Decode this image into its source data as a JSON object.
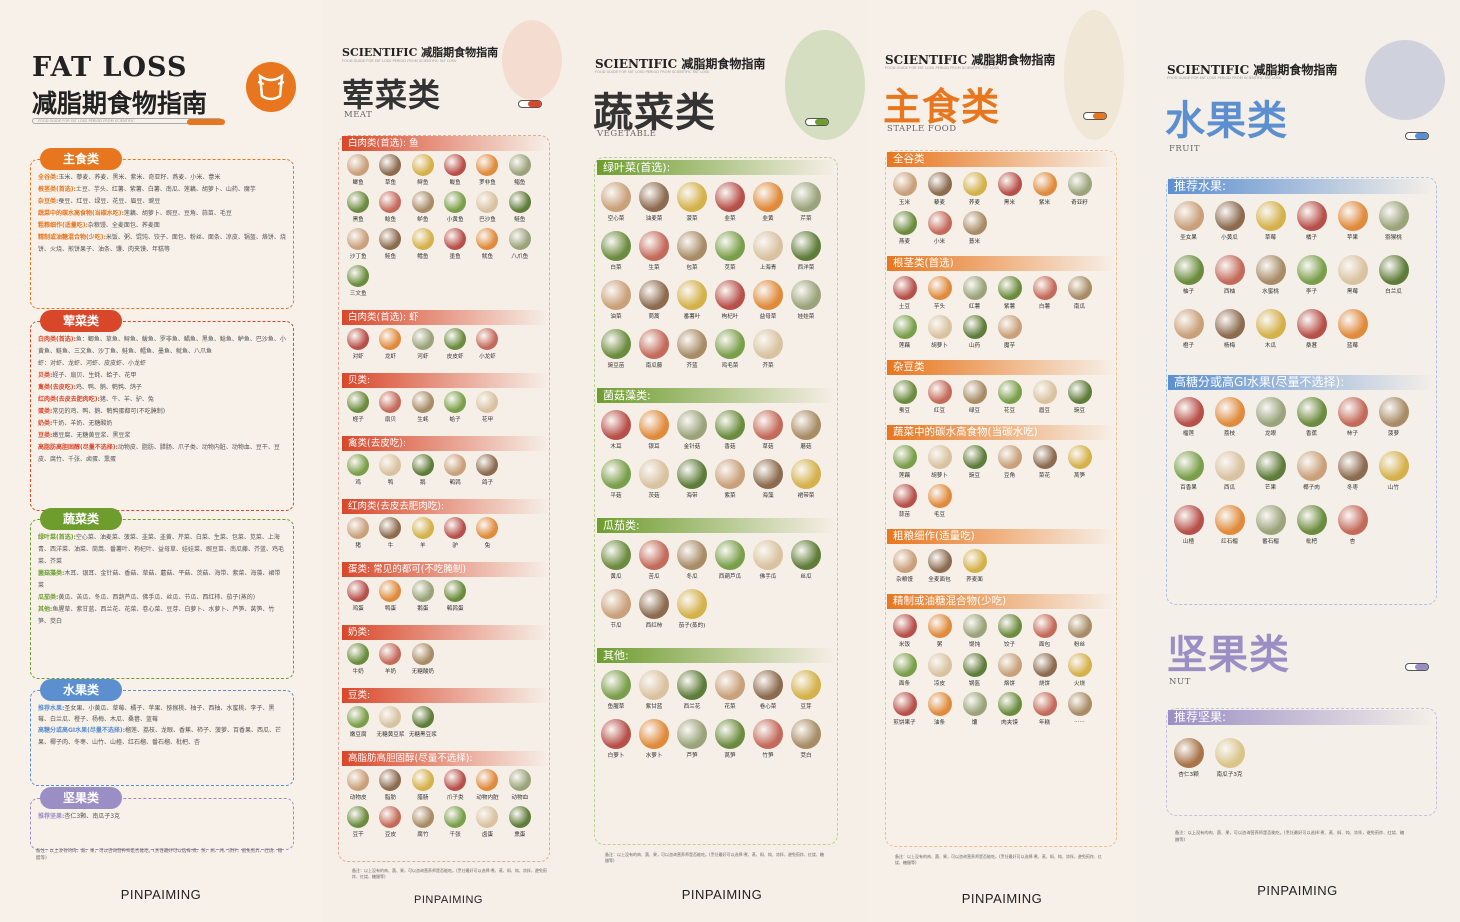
{
  "summary": {
    "title_en": "FAT LOSS",
    "title_cn": "减脂期食物指南",
    "subline": "FOOD GUIDE FOR FAT LOSS PERIOD FROM SCIENTIFIC",
    "sections": [
      {
        "pill": "主食类",
        "color": "#e8761e",
        "lines": [
          {
            "k": "全谷类:",
            "v": "玉米、藜麦、荞麦、黑米、紫米、奇亚籽、燕麦、小米、薏米"
          },
          {
            "k": "根茎类(首选):",
            "v": "土豆、芋头、红薯、紫薯、白薯、南瓜、莲藕、胡萝卜、山药、魔芋"
          },
          {
            "k": "杂豆类:",
            "v": "蚕豆、红豆、绿豆、花豆、眉豆、豌豆"
          },
          {
            "k": "蔬菜中的碳水高食物(当碳水吃):",
            "v": "莲藕、胡萝卜、豌豆、豆角、蒜苗、毛豆"
          },
          {
            "k": "粗粮细作(适量吃):",
            "v": "杂粮馒、全麦面包、荞麦面"
          },
          {
            "k": "精制或油糖混合物(少吃):",
            "v": "米饭、粥、馄饨、饺子、面包、粉丝、面条、凉皮、锅盔、烙饼、烧饼、火烧、煎饼果子、油条、馕、肉夹馍、年糕等"
          }
        ]
      },
      {
        "pill": "荤菜类",
        "color": "#d9472a",
        "lines": [
          {
            "k": "白肉类(首选):",
            "v": "鱼：鲫鱼、草鱼、鲟鱼、鲅鱼、罗非鱼、鲳鱼、黑鱼、鲶鱼、鲈鱼、巴沙鱼、小黄鱼、鲢鱼、三文鱼、沙丁鱼、鲑鱼、鳕鱼、墨鱼、鱿鱼、八爪鱼"
          },
          {
            "k": "",
            "v": "虾：对虾、龙虾、河虾、皮皮虾、小龙虾"
          },
          {
            "k": "贝类:",
            "v": "蛏子、扇贝、生蚝、蛤子、花甲"
          },
          {
            "k": "禽类(去皮吃):",
            "v": "鸡、鸭、鹅、鹌鹑、鸽子"
          },
          {
            "k": "红肉类(去皮去肥肉吃):",
            "v": "猪、牛、羊、驴、兔"
          },
          {
            "k": "蛋类:",
            "v": "常见的鸡、鸭、鹅、鹌鹑蛋都可(不吃腌制)"
          },
          {
            "k": "奶类:",
            "v": "牛奶、羊奶、无糖酸奶"
          },
          {
            "k": "豆类:",
            "v": "嫩豆腐、无糖黄豆浆、黑豆浆"
          },
          {
            "k": "高脂肪高胆固醇(尽量不选择):",
            "v": "动物皮、脂肪、腊肠、爪子类、动物内脏、动物血、豆干、豆皮、腐竹、千张、卤蛋、熏蛋"
          }
        ]
      },
      {
        "pill": "蔬菜类",
        "color": "#6e9d2e",
        "lines": [
          {
            "k": "绿叶菜(首选):",
            "v": "空心菜、油麦菜、菠菜、韭菜、韭黄、芹菜、白菜、生菜、包菜、苋菜、上海青、西洋菜、油菜、茼蒿、番薯叶、枸杞叶、益母草、娃娃菜、豌豆苗、南瓜藤、芥蓝、鸡毛菜、芥菜"
          },
          {
            "k": "菌菇藻类:",
            "v": "木耳、银耳、金针菇、香菇、草菇、蘑菇、平菇、茨菇、海带、紫菜、海藻、裙带菜"
          },
          {
            "k": "瓜茄类:",
            "v": "黄瓜、苦瓜、冬瓜、西葫芦瓜、佛手瓜、丝瓜、节瓜、西红柿、茄子(蒸的)"
          },
          {
            "k": "其他:",
            "v": "鱼腥草、紫甘蓝、西兰花、花菜、卷心菜、豆芽、白萝卜、水萝卜、芦笋、莴笋、竹笋、茭白"
          }
        ]
      },
      {
        "pill": "水果类",
        "color": "#5b8fd0",
        "lines": [
          {
            "k": "推荐水果:",
            "v": "圣女果、小黄瓜、草莓、橘子、苹果、猕猴桃、柚子、西柚、水蜜桃、李子、黑莓、白兰瓜、橙子、杨梅、木瓜、桑葚、蓝莓"
          },
          {
            "k": "高糖分或高GI水果(尽量不选择):",
            "v": "榴莲、荔枝、龙眼、香蕉、柿子、菠萝、百香果、西瓜、芒果、椰子肉、冬枣、山竹、山楂、红石榴、番石榴、枇杷、杏"
          }
        ]
      },
      {
        "pill": "坚果类",
        "color": "#9b8ec4",
        "lines": [
          {
            "k": "推荐坚果:",
            "v": "杏仁3颗、南瓜子3克"
          }
        ]
      }
    ],
    "note": "备注：以上没有的肉、蔬、果，可以咨询营养师是否能吃。(烹饪最好可以选择:煮、蒸、焖、炖、凉拌、避免煎炸、红烧、糖醋等)",
    "footer": "PINPAIMING"
  },
  "meat": {
    "sci": "SCIENTIFIC 减脂期食物指南",
    "subline": "FOOD GUIDE FOR FAT LOSS PERIOD FROM SCIENTIFIC FAT LOSS",
    "cat": "荤菜类",
    "cat_en": "MEAT",
    "color": "#d9472a",
    "sections": [
      {
        "title": "白肉类(首选): 鱼",
        "items": [
          "鲫鱼",
          "草鱼",
          "鲟鱼",
          "鲅鱼",
          "罗非鱼",
          "鲳鱼",
          "黑鱼",
          "鲶鱼",
          "鲈鱼",
          "小黄鱼",
          "巴沙鱼",
          "鲢鱼",
          "沙丁鱼",
          "鲑鱼",
          "鳕鱼",
          "墨鱼",
          "鱿鱼",
          "八爪鱼",
          "三文鱼"
        ]
      },
      {
        "title": "白肉类(首选): 虾",
        "items": [
          "对虾",
          "龙虾",
          "河虾",
          "皮皮虾",
          "小龙虾"
        ]
      },
      {
        "title": "贝类:",
        "items": [
          "蛏子",
          "扇贝",
          "生蚝",
          "蛤子",
          "花甲"
        ]
      },
      {
        "title": "禽类(去皮吃):",
        "items": [
          "鸡",
          "鸭",
          "鹅",
          "鹌鹑",
          "鸽子"
        ]
      },
      {
        "title": "红肉类(去皮去肥肉吃):",
        "items": [
          "猪",
          "牛",
          "羊",
          "驴",
          "兔"
        ]
      },
      {
        "title": "蛋类: 常见的都可(不吃腌制)",
        "items": [
          "鸡蛋",
          "鸭蛋",
          "鹅蛋",
          "鹌鹑蛋"
        ]
      },
      {
        "title": "奶类:",
        "items": [
          "牛奶",
          "羊奶",
          "无糖酸奶"
        ]
      },
      {
        "title": "豆类:",
        "items": [
          "嫩豆腐",
          "无糖黄豆浆",
          "无糖黑豆浆"
        ]
      },
      {
        "title": "高脂肪高胆固醇(尽量不选择):",
        "items": [
          "动物皮",
          "脂肪",
          "腊肠",
          "爪子类",
          "动物内脏",
          "动物血",
          "豆干",
          "豆皮",
          "腐竹",
          "千张",
          "卤蛋",
          "熏蛋"
        ]
      }
    ],
    "note": "备注：以上没有的肉、蔬、果，可以咨询营养师是否能吃。(烹饪最好可以选择:煮、蒸、焖、炖、凉拌，避免煎炸、红烧、糖醋等)",
    "footer": "PINPAIMING"
  },
  "veg": {
    "sci": "SCIENTIFIC 减脂期食物指南",
    "subline": "FOOD GUIDE FOR FAT LOSS PERIOD FROM SCIENTIFIC FAT LOSS",
    "cat": "蔬菜类",
    "cat_en": "VEGETABLE",
    "color": "#6e9d2e",
    "sections": [
      {
        "title": "绿叶菜(首选):",
        "items": [
          "空心菜",
          "油麦菜",
          "菠菜",
          "韭菜",
          "韭黄",
          "芹菜",
          "白菜",
          "生菜",
          "包菜",
          "苋菜",
          "上海青",
          "西洋菜",
          "油菜",
          "茼蒿",
          "番薯叶",
          "枸杞叶",
          "益母草",
          "娃娃菜",
          "豌豆苗",
          "南瓜藤",
          "芥蓝",
          "鸡毛菜",
          "芥菜"
        ]
      },
      {
        "title": "菌菇藻类:",
        "items": [
          "木耳",
          "银耳",
          "金针菇",
          "香菇",
          "草菇",
          "蘑菇",
          "平菇",
          "茨菇",
          "海带",
          "紫菜",
          "海藻",
          "裙带菜"
        ]
      },
      {
        "title": "瓜茄类:",
        "items": [
          "黄瓜",
          "苦瓜",
          "冬瓜",
          "西葫芦瓜",
          "佛手瓜",
          "丝瓜",
          "节瓜",
          "西红柿",
          "茄子(蒸的)"
        ]
      },
      {
        "title": "其他:",
        "items": [
          "鱼腥草",
          "紫甘蓝",
          "西兰花",
          "花菜",
          "卷心菜",
          "豆芽",
          "白萝卜",
          "水萝卜",
          "芦笋",
          "莴笋",
          "竹笋",
          "茭白"
        ]
      }
    ],
    "note": "备注：以上没有的肉、蔬、果，可以咨询营养师是否能吃。(烹饪最好可以选择:煮、蒸、焖、炖、凉拌，避免煎炸、红烧、糖醋等)",
    "footer": "PINPAIMING"
  },
  "staple": {
    "sci": "SCIENTIFIC 减脂期食物指南",
    "subline": "FOOD GUIDE FOR FAT LOSS PERIOD FROM SCIENTIFIC FAT LOSS",
    "cat": "主食类",
    "cat_en": "STAPLE FOOD",
    "color": "#e8761e",
    "sections": [
      {
        "title": "全谷类",
        "items": [
          "玉米",
          "藜麦",
          "荞麦",
          "黑米",
          "紫米",
          "奇亚籽",
          "燕麦",
          "小米",
          "薏米"
        ]
      },
      {
        "title": "根茎类(首选)",
        "items": [
          "土豆",
          "芋头",
          "红薯",
          "紫薯",
          "白薯",
          "南瓜",
          "莲藕",
          "胡萝卜",
          "山药",
          "魔芋"
        ]
      },
      {
        "title": "杂豆类",
        "items": [
          "蚕豆",
          "红豆",
          "绿豆",
          "花豆",
          "眉豆",
          "豌豆"
        ]
      },
      {
        "title": "蔬菜中的碳水高食物(当碳水吃)",
        "items": [
          "莲藕",
          "胡萝卜",
          "豌豆",
          "豆角",
          "菜花",
          "莴笋",
          "蒜苗",
          "毛豆"
        ]
      },
      {
        "title": "粗粮细作(适量吃)",
        "items": [
          "杂粮馒",
          "全麦面包",
          "荞麦面"
        ]
      },
      {
        "title": "精制或油糖混合物(少吃)",
        "items": [
          "米饭",
          "粥",
          "馄饨",
          "饺子",
          "面包",
          "粉丝",
          "面条",
          "凉皮",
          "锅盔",
          "烙饼",
          "烧饼",
          "火烧",
          "煎饼果子",
          "油条",
          "馕",
          "肉夹馍",
          "年糕",
          "......"
        ]
      }
    ],
    "note": "备注：以上没有的肉、蔬、果，可以咨询营养师是否能吃。(烹饪最好可以选择:煮、蒸、焖、炖、凉拌，避免煎炸、红烧、糖醋等)",
    "footer": "PINPAIMING"
  },
  "fruit": {
    "sci": "SCIENTIFIC 减脂期食物指南",
    "subline": "FOOD GUIDE FOR FAT LOSS PERIOD FROM SCIENTIFIC FAT LOSS",
    "cat": "水果类",
    "cat_en": "FRUIT",
    "color": "#5b8fd0",
    "sections": [
      {
        "title": "推荐水果:",
        "items": [
          "圣女果",
          "小黄瓜",
          "草莓",
          "橘子",
          "苹果",
          "猕猴桃",
          "柚子",
          "西柚",
          "水蜜桃",
          "李子",
          "黑莓",
          "白兰瓜",
          "橙子",
          "杨梅",
          "木瓜",
          "桑葚",
          "蓝莓"
        ]
      },
      {
        "title": "高糖分或高GI水果(尽量不选择):",
        "items": [
          "榴莲",
          "荔枝",
          "龙眼",
          "香蕉",
          "柿子",
          "菠萝",
          "百香果",
          "西瓜",
          "芒果",
          "椰子肉",
          "冬枣",
          "山竹",
          "山楂",
          "红石榴",
          "番石榴",
          "枇杷",
          "杏"
        ]
      }
    ],
    "nut_cat": "坚果类",
    "nut_en": "NUT",
    "nut_color": "#9b8ec4",
    "nut_title": "推荐坚果:",
    "nut_items": [
      "杏仁3颗",
      "南瓜子3克"
    ],
    "note": "备注：以上没有的肉、蔬、果，可以咨询营养师是否能吃。(烹饪最好可以选择:煮、蒸、焖、炖、凉拌，避免煎炸、红烧、糖醋等)",
    "footer": "PINPAIMING"
  },
  "item_colors": [
    "#c9a07a",
    "#8c6b4f",
    "#d4b14a",
    "#b8504a",
    "#e08a3c",
    "#9aa37a",
    "#6b8c3e",
    "#c46a5a",
    "#a88c66",
    "#7a9f4a",
    "#d9c2a0",
    "#5f7d3a"
  ]
}
